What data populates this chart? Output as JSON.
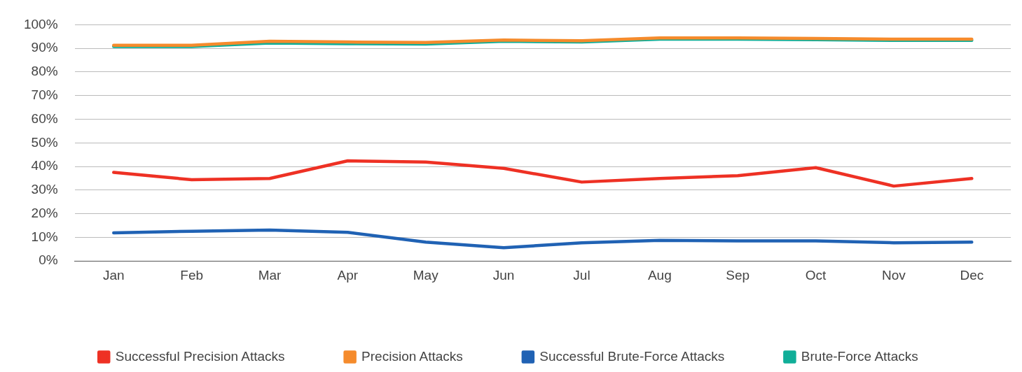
{
  "chart_data": {
    "type": "line",
    "categories": [
      "Jan",
      "Feb",
      "Mar",
      "Apr",
      "May",
      "Jun",
      "Jul",
      "Aug",
      "Sep",
      "Oct",
      "Nov",
      "Dec"
    ],
    "series": [
      {
        "name": "Successful Precision Attacks",
        "color": "#ee3124",
        "values": [
          37.5,
          34.4,
          34.9,
          42.4,
          41.9,
          39.2,
          33.4,
          34.9,
          36.1,
          39.5,
          31.7,
          34.9
        ]
      },
      {
        "name": "Precision Attacks",
        "color": "#f58b2c",
        "values": [
          91.3,
          91.3,
          93.0,
          92.7,
          92.5,
          93.5,
          93.2,
          94.4,
          94.4,
          94.2,
          93.9,
          93.9
        ]
      },
      {
        "name": "Successful Brute-Force Attacks",
        "color": "#2062b4",
        "values": [
          11.9,
          12.6,
          13.1,
          12.1,
          8.0,
          5.6,
          7.7,
          8.7,
          8.5,
          8.5,
          7.7,
          8.0
        ]
      },
      {
        "name": "Brute-Force Attacks",
        "color": "#10ae98",
        "values": [
          90.8,
          90.8,
          92.3,
          92.0,
          91.8,
          93.0,
          92.7,
          93.9,
          93.9,
          93.7,
          93.4,
          93.4
        ]
      }
    ],
    "ylim": [
      0,
      100
    ],
    "yticks": [
      {
        "value": 0,
        "label": "0%"
      },
      {
        "value": 10,
        "label": "10%"
      },
      {
        "value": 20,
        "label": "20%"
      },
      {
        "value": 30,
        "label": "30%"
      },
      {
        "value": 40,
        "label": "40%"
      },
      {
        "value": 50,
        "label": "50%"
      },
      {
        "value": 60,
        "label": "60%"
      },
      {
        "value": 70,
        "label": "70%"
      },
      {
        "value": 80,
        "label": "80%"
      },
      {
        "value": 90,
        "label": "90%"
      },
      {
        "value": 100,
        "label": "100%"
      }
    ],
    "grid": "y",
    "legend": "bottom",
    "marker": "none",
    "line_style": "solid"
  }
}
